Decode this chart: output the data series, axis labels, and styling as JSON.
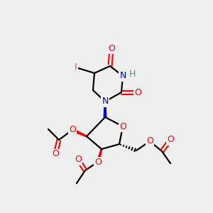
{
  "bg_color": "#efefef",
  "atom_colors": {
    "O": "#ff0000",
    "N": "#0000cc",
    "I": "#cc44cc",
    "H": "#5a9090",
    "C": "#000000"
  }
}
